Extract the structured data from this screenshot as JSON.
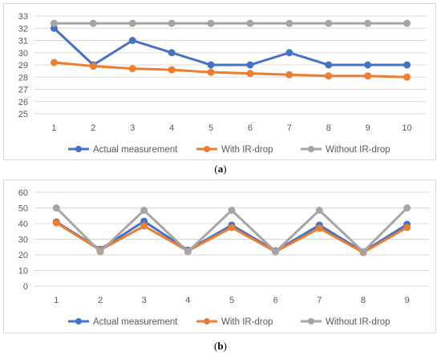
{
  "chart_data": [
    {
      "id": "a",
      "caption_label": "a",
      "type": "line",
      "x": [
        1,
        2,
        3,
        4,
        5,
        6,
        7,
        8,
        9,
        10
      ],
      "ylim": [
        25,
        33
      ],
      "yticks": [
        25,
        26,
        27,
        28,
        29,
        30,
        31,
        32,
        33
      ],
      "grid": true,
      "legend_position": "bottom",
      "series": [
        {
          "name": "Actual measurement",
          "color": "#4472C4",
          "values": [
            32,
            29,
            31,
            30,
            29,
            29,
            30,
            29,
            29,
            29
          ]
        },
        {
          "name": "With IR-drop",
          "color": "#ED7D31",
          "values": [
            29.2,
            28.9,
            28.7,
            28.6,
            28.4,
            28.3,
            28.2,
            28.1,
            28.1,
            28.0
          ]
        },
        {
          "name": "Without IR-drop",
          "color": "#A5A5A5",
          "values": [
            32.4,
            32.4,
            32.4,
            32.4,
            32.4,
            32.4,
            32.4,
            32.4,
            32.4,
            32.4
          ]
        }
      ]
    },
    {
      "id": "b",
      "caption_label": "b",
      "type": "line",
      "x": [
        1,
        2,
        3,
        4,
        5,
        6,
        7,
        8,
        9
      ],
      "ylim": [
        0,
        60
      ],
      "yticks": [
        0,
        10,
        20,
        30,
        40,
        50,
        60
      ],
      "grid": true,
      "legend_position": "bottom",
      "series": [
        {
          "name": "Actual measurement",
          "color": "#4472C4",
          "values": [
            41,
            23.5,
            41.5,
            23,
            39,
            22.5,
            39,
            22,
            39.5
          ]
        },
        {
          "name": "With IR-drop",
          "color": "#ED7D31",
          "values": [
            40.5,
            23,
            38.5,
            22.5,
            37.5,
            22,
            37,
            21.5,
            37.5
          ]
        },
        {
          "name": "Without IR-drop",
          "color": "#A5A5A5",
          "values": [
            50,
            22,
            48.5,
            22,
            48.5,
            22,
            48.5,
            22,
            50
          ]
        }
      ]
    }
  ]
}
